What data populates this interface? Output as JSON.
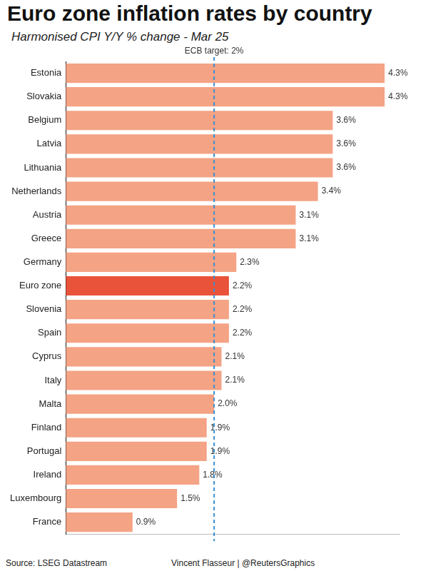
{
  "chart_data": {
    "type": "bar",
    "orientation": "horizontal",
    "title": "Euro zone inflation rates by country",
    "subtitle": "Harmonised CPI Y/Y % change - Mar 25",
    "source": "Source: LSEG Datastream",
    "credit": "Vincent Flasseur | @ReutersGraphics",
    "categories": [
      "Estonia",
      "Slovakia",
      "Belgium",
      "Latvia",
      "Lithuania",
      "Netherlands",
      "Austria",
      "Greece",
      "Germany",
      "Euro zone",
      "Slovenia",
      "Spain",
      "Cyprus",
      "Italy",
      "Malta",
      "Finland",
      "Portugal",
      "Ireland",
      "Luxembourg",
      "France"
    ],
    "values": [
      4.3,
      4.3,
      3.6,
      3.6,
      3.6,
      3.4,
      3.1,
      3.1,
      2.3,
      2.2,
      2.2,
      2.2,
      2.1,
      2.1,
      2.0,
      1.9,
      1.9,
      1.8,
      1.5,
      0.9
    ],
    "value_labels": [
      "4.3%",
      "4.3%",
      "3.6%",
      "3.6%",
      "3.6%",
      "3.4%",
      "3.1%",
      "3.1%",
      "2.3%",
      "2.2%",
      "2.2%",
      "2.2%",
      "2.1%",
      "2.1%",
      "2.0%",
      "1.9%",
      "1.9%",
      "1.8%",
      "1.5%",
      "0.9%"
    ],
    "colors": [
      "#f4a385",
      "#f4a385",
      "#f4a385",
      "#f4a385",
      "#f4a385",
      "#f4a385",
      "#f4a385",
      "#f4a385",
      "#f4a385",
      "#e8533a",
      "#f4a385",
      "#f4a385",
      "#f4a385",
      "#f4a385",
      "#f4a385",
      "#f4a385",
      "#f4a385",
      "#f4a385",
      "#f4a385",
      "#f4a385"
    ],
    "data_labels": true,
    "xlim": [
      0,
      4.5
    ],
    "xticks": [
      0,
      1,
      2,
      3,
      4
    ],
    "tick_labels": "y",
    "grid": false,
    "annotations": [
      {
        "label": "ECB target: 2%",
        "value": 2,
        "color": "#3a8fd1",
        "line_style": "dashed"
      }
    ]
  }
}
